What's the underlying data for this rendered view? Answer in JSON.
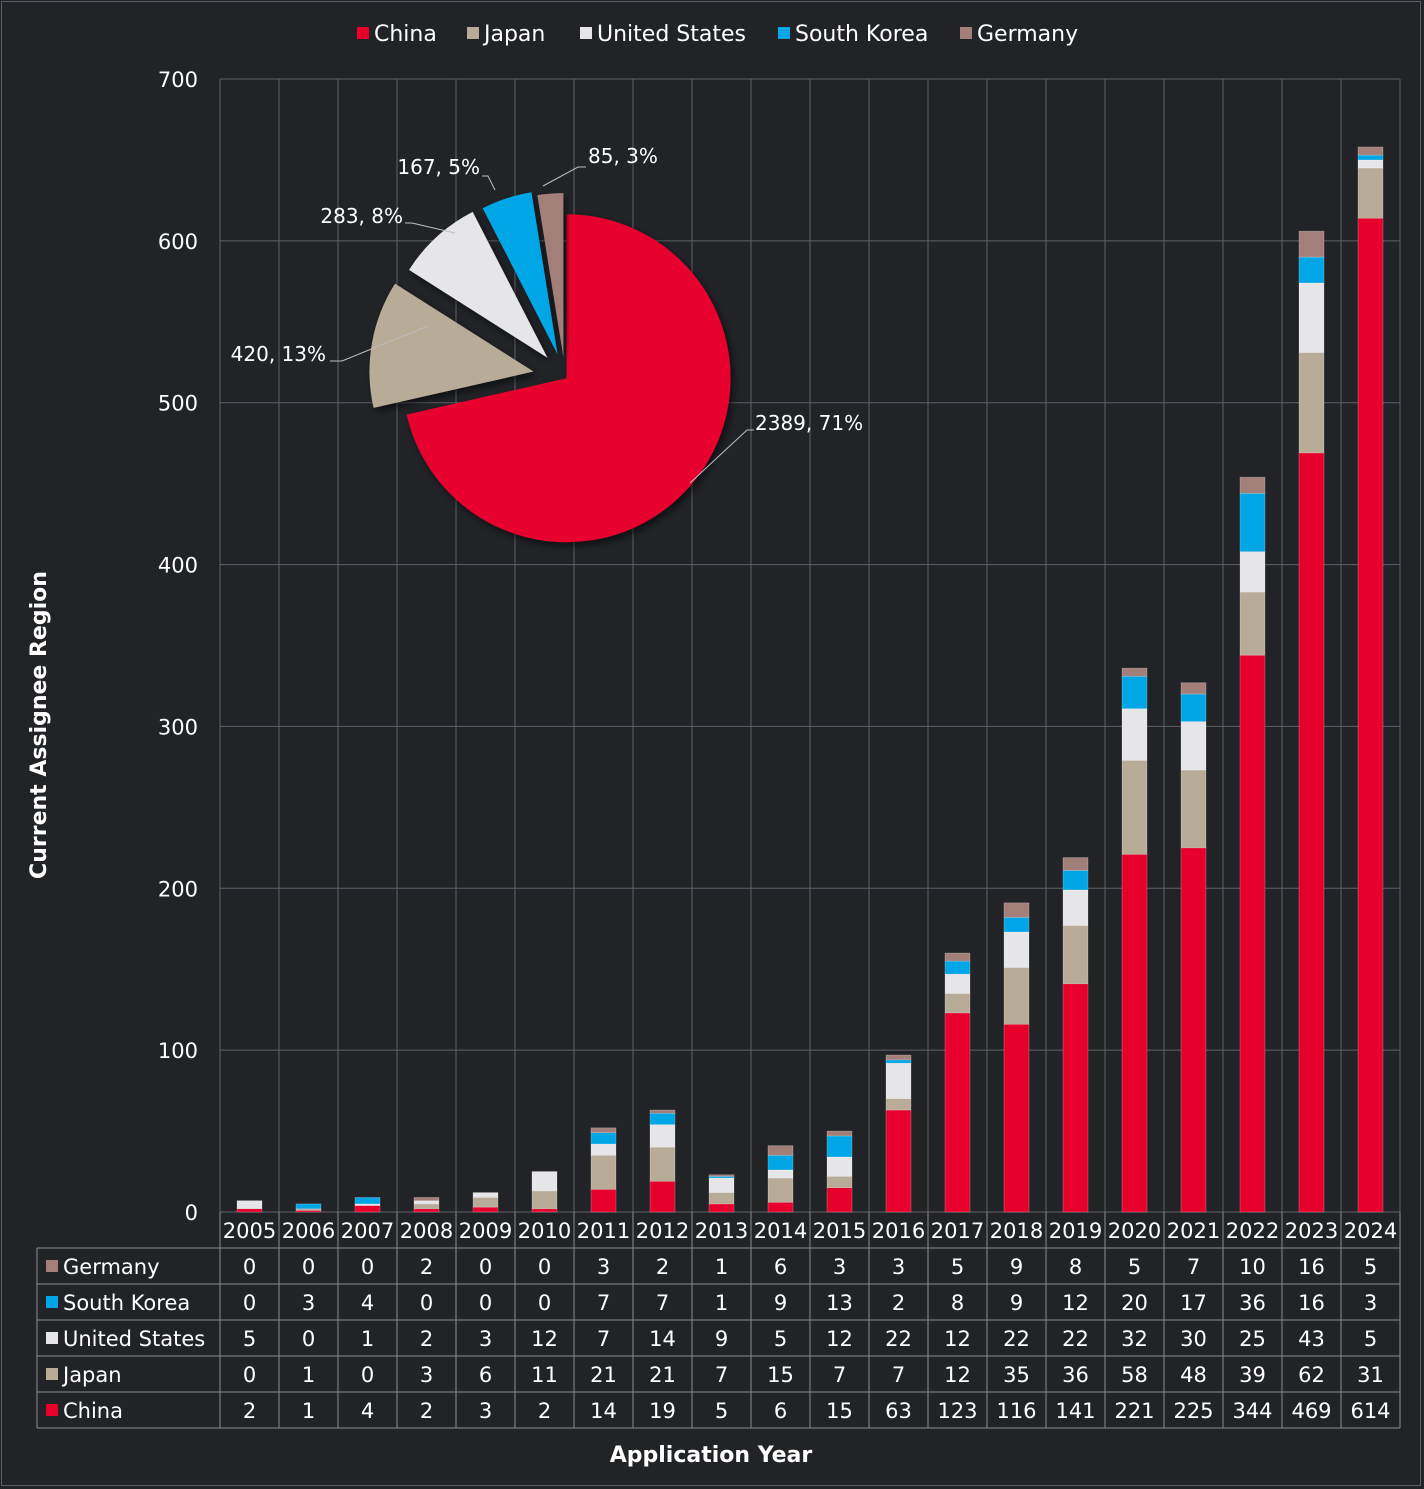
{
  "chart_data": [
    {
      "type": "bar",
      "stacked": true,
      "xlabel": "Application Year",
      "ylabel": "Current Assignee Region",
      "ylim": [
        0,
        700
      ],
      "yticks": [
        0,
        100,
        200,
        300,
        400,
        500,
        600,
        700
      ],
      "grid": true,
      "legend_position": "top",
      "data_table": true,
      "categories": [
        "2005",
        "2006",
        "2007",
        "2008",
        "2009",
        "2010",
        "2011",
        "2012",
        "2013",
        "2014",
        "2015",
        "2016",
        "2017",
        "2018",
        "2019",
        "2020",
        "2021",
        "2022",
        "2023",
        "2024"
      ],
      "series": [
        {
          "name": "China",
          "color": "#e8002d",
          "values": [
            2,
            1,
            4,
            2,
            3,
            2,
            14,
            19,
            5,
            6,
            15,
            63,
            123,
            116,
            141,
            221,
            225,
            344,
            469,
            614
          ]
        },
        {
          "name": "Japan",
          "color": "#b8ab97",
          "values": [
            0,
            1,
            0,
            3,
            6,
            11,
            21,
            21,
            7,
            15,
            7,
            7,
            12,
            35,
            36,
            58,
            48,
            39,
            62,
            31
          ]
        },
        {
          "name": "United States",
          "color": "#e6e6e8",
          "values": [
            5,
            0,
            1,
            2,
            3,
            12,
            7,
            14,
            9,
            5,
            12,
            22,
            12,
            22,
            22,
            32,
            30,
            25,
            43,
            5
          ]
        },
        {
          "name": "South Korea",
          "color": "#00a6e6",
          "values": [
            0,
            3,
            4,
            0,
            0,
            0,
            7,
            7,
            1,
            9,
            13,
            2,
            8,
            9,
            12,
            20,
            17,
            36,
            16,
            3
          ]
        },
        {
          "name": "Germany",
          "color": "#a37f79",
          "values": [
            0,
            0,
            0,
            2,
            0,
            0,
            3,
            2,
            1,
            6,
            3,
            3,
            5,
            9,
            8,
            5,
            7,
            10,
            16,
            5
          ]
        }
      ],
      "table_row_order": [
        "Germany",
        "South Korea",
        "United States",
        "Japan",
        "China"
      ]
    },
    {
      "type": "pie",
      "exploded": true,
      "slices": [
        {
          "name": "China",
          "value": 2389,
          "percent": "71%",
          "label": "2389, 71%",
          "color": "#e8002d"
        },
        {
          "name": "Japan",
          "value": 420,
          "percent": "13%",
          "label": "420, 13%",
          "color": "#b8ab97"
        },
        {
          "name": "United States",
          "value": 283,
          "percent": "8%",
          "label": "283, 8%",
          "color": "#e6e6e8"
        },
        {
          "name": "South Korea",
          "value": 167,
          "percent": "5%",
          "label": "167, 5%",
          "color": "#00a6e6"
        },
        {
          "name": "Germany",
          "value": 85,
          "percent": "3%",
          "label": "85, 3%",
          "color": "#a37f79"
        }
      ]
    }
  ],
  "colors": {
    "background": "#212327",
    "grid": "#5f6166",
    "text": "#ffffff"
  }
}
